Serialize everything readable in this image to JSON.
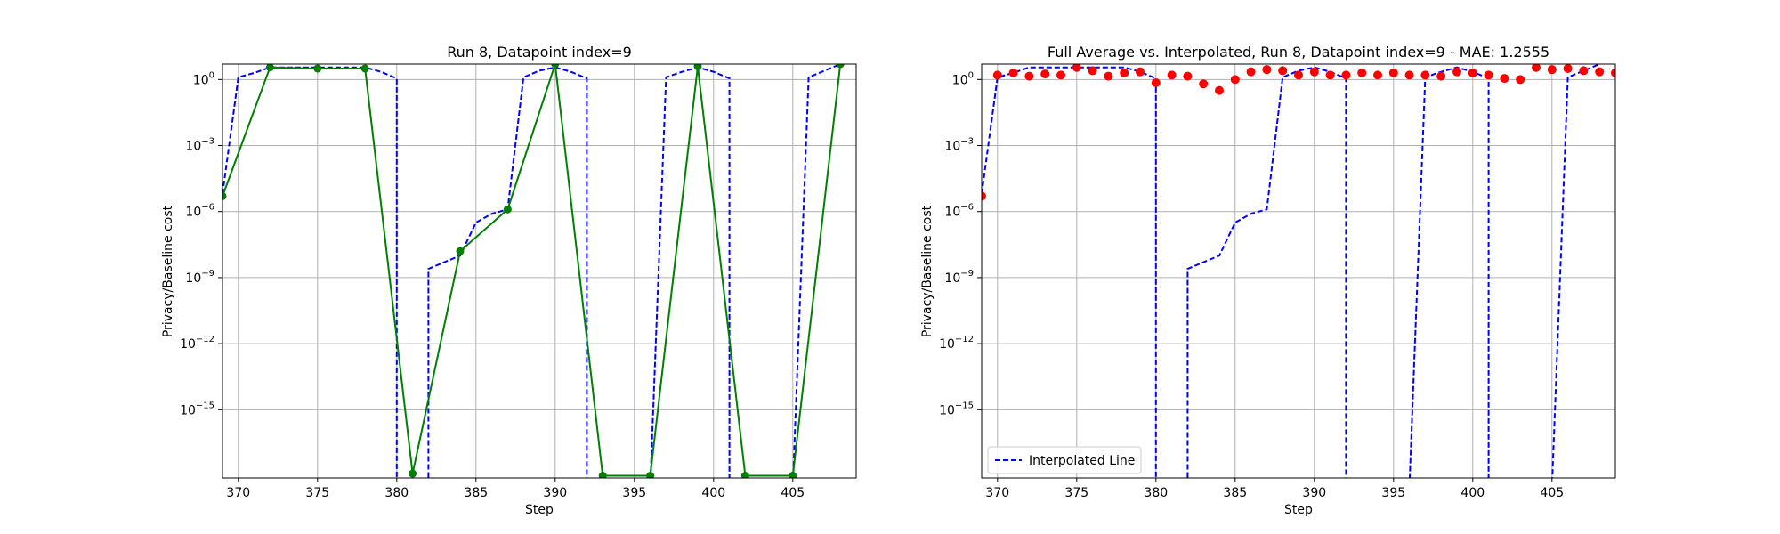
{
  "chart_data": [
    {
      "type": "line",
      "title": "Run 8, Datapoint index=9",
      "xlabel": "Step",
      "ylabel": "Privacy/Baseline cost",
      "xlim": [
        369,
        409
      ],
      "ylim_exponent": [
        -18.1,
        0.7
      ],
      "y_scale": "log",
      "grid": true,
      "x_ticks": [
        {
          "value": 370,
          "label": "370"
        },
        {
          "value": 375,
          "label": "375"
        },
        {
          "value": 380,
          "label": "380"
        },
        {
          "value": 385,
          "label": "385"
        },
        {
          "value": 390,
          "label": "390"
        },
        {
          "value": 395,
          "label": "395"
        },
        {
          "value": 400,
          "label": "400"
        },
        {
          "value": 405,
          "label": "405"
        }
      ],
      "y_ticks": [
        {
          "exp": 0,
          "base": "10",
          "power": "0"
        },
        {
          "exp": -3,
          "base": "10",
          "power": "−3"
        },
        {
          "exp": -6,
          "base": "10",
          "power": "−6"
        },
        {
          "exp": -9,
          "base": "10",
          "power": "−9"
        },
        {
          "exp": -12,
          "base": "10",
          "power": "−12"
        },
        {
          "exp": -15,
          "base": "10",
          "power": "−15"
        }
      ],
      "series": [
        {
          "style": "dashed",
          "color": "#0000ff",
          "points": [
            [
              369,
              -5.2
            ],
            [
              370,
              0.1
            ],
            [
              371,
              0.3
            ],
            [
              372,
              0.55
            ],
            [
              373,
              0.55
            ],
            [
              374,
              0.55
            ],
            [
              375,
              0.55
            ],
            [
              376,
              0.55
            ],
            [
              377,
              0.55
            ],
            [
              378,
              0.55
            ],
            [
              379,
              0.35
            ],
            [
              380,
              0.05
            ],
            [
              380,
              -18.5
            ],
            [
              382,
              -18.5
            ],
            [
              382,
              -8.6
            ],
            [
              383,
              -8.3
            ],
            [
              384,
              -8.0
            ],
            [
              385,
              -6.5
            ],
            [
              386,
              -6.1
            ],
            [
              387,
              -5.9
            ],
            [
              388,
              0.1
            ],
            [
              389,
              0.4
            ],
            [
              390,
              0.55
            ],
            [
              391,
              0.35
            ],
            [
              392,
              0.05
            ],
            [
              392,
              -18.5
            ],
            [
              396,
              -18.5
            ],
            [
              397,
              0.1
            ],
            [
              398,
              0.35
            ],
            [
              399,
              0.55
            ],
            [
              400,
              0.35
            ],
            [
              401,
              0.05
            ],
            [
              401,
              -18.5
            ],
            [
              405,
              -18.5
            ],
            [
              406,
              0.1
            ],
            [
              407,
              0.4
            ],
            [
              408,
              0.7
            ]
          ]
        },
        {
          "style": "solid-markers",
          "color": "#008000",
          "points": [
            [
              369,
              -5.3
            ],
            [
              372,
              0.55
            ],
            [
              375,
              0.5
            ],
            [
              378,
              0.5
            ],
            [
              381,
              -17.9
            ],
            [
              384,
              -7.8
            ],
            [
              387,
              -5.9
            ],
            [
              390,
              0.7
            ],
            [
              393,
              -18.0
            ],
            [
              396,
              -18.0
            ],
            [
              399,
              0.6
            ],
            [
              402,
              -18.0
            ],
            [
              405,
              -18.0
            ],
            [
              408,
              0.7
            ]
          ]
        }
      ]
    },
    {
      "type": "scatter",
      "title": "Full Average vs. Interpolated, Run 8, Datapoint index=9 - MAE: 1.2555",
      "xlabel": "Step",
      "ylabel": "Privacy/Baseline cost",
      "xlim": [
        369,
        409
      ],
      "ylim_exponent": [
        -18.1,
        0.7
      ],
      "y_scale": "log",
      "grid": true,
      "legend": {
        "position": "lower-left",
        "entries": [
          "Interpolated Line"
        ]
      },
      "x_ticks": [
        {
          "value": 370,
          "label": "370"
        },
        {
          "value": 375,
          "label": "375"
        },
        {
          "value": 380,
          "label": "380"
        },
        {
          "value": 385,
          "label": "385"
        },
        {
          "value": 390,
          "label": "390"
        },
        {
          "value": 395,
          "label": "395"
        },
        {
          "value": 400,
          "label": "400"
        },
        {
          "value": 405,
          "label": "405"
        }
      ],
      "y_ticks": [
        {
          "exp": 0,
          "base": "10",
          "power": "0"
        },
        {
          "exp": -3,
          "base": "10",
          "power": "−3"
        },
        {
          "exp": -6,
          "base": "10",
          "power": "−6"
        },
        {
          "exp": -9,
          "base": "10",
          "power": "−9"
        },
        {
          "exp": -12,
          "base": "10",
          "power": "−12"
        },
        {
          "exp": -15,
          "base": "10",
          "power": "−15"
        }
      ],
      "series": [
        {
          "name": "Interpolated Line",
          "style": "dashed",
          "color": "#0000ff",
          "points": [
            [
              369,
              -5.2
            ],
            [
              370,
              0.1
            ],
            [
              371,
              0.3
            ],
            [
              372,
              0.55
            ],
            [
              373,
              0.55
            ],
            [
              374,
              0.55
            ],
            [
              375,
              0.55
            ],
            [
              376,
              0.55
            ],
            [
              377,
              0.55
            ],
            [
              378,
              0.55
            ],
            [
              379,
              0.35
            ],
            [
              380,
              0.05
            ],
            [
              380,
              -18.5
            ],
            [
              382,
              -18.5
            ],
            [
              382,
              -8.6
            ],
            [
              383,
              -8.3
            ],
            [
              384,
              -8.0
            ],
            [
              385,
              -6.5
            ],
            [
              386,
              -6.1
            ],
            [
              387,
              -5.9
            ],
            [
              388,
              0.1
            ],
            [
              389,
              0.4
            ],
            [
              390,
              0.55
            ],
            [
              391,
              0.35
            ],
            [
              392,
              0.05
            ],
            [
              392,
              -18.5
            ],
            [
              396,
              -18.5
            ],
            [
              397,
              0.1
            ],
            [
              398,
              0.35
            ],
            [
              399,
              0.55
            ],
            [
              400,
              0.35
            ],
            [
              401,
              0.05
            ],
            [
              401,
              -18.5
            ],
            [
              405,
              -18.5
            ],
            [
              406,
              0.1
            ],
            [
              407,
              0.4
            ],
            [
              408,
              0.7
            ]
          ]
        },
        {
          "style": "markers",
          "color": "#ff0000",
          "points": [
            [
              369,
              -5.3
            ],
            [
              370,
              0.2
            ],
            [
              371,
              0.3
            ],
            [
              372,
              0.15
            ],
            [
              373,
              0.25
            ],
            [
              374,
              0.2
            ],
            [
              375,
              0.55
            ],
            [
              376,
              0.4
            ],
            [
              377,
              0.15
            ],
            [
              378,
              0.3
            ],
            [
              379,
              0.35
            ],
            [
              380,
              -0.15
            ],
            [
              381,
              0.2
            ],
            [
              382,
              0.15
            ],
            [
              383,
              -0.2
            ],
            [
              384,
              -0.5
            ],
            [
              385,
              0.0
            ],
            [
              386,
              0.35
            ],
            [
              387,
              0.45
            ],
            [
              388,
              0.4
            ],
            [
              389,
              0.2
            ],
            [
              390,
              0.35
            ],
            [
              391,
              0.2
            ],
            [
              392,
              0.2
            ],
            [
              393,
              0.3
            ],
            [
              394,
              0.2
            ],
            [
              395,
              0.3
            ],
            [
              396,
              0.2
            ],
            [
              397,
              0.2
            ],
            [
              398,
              0.15
            ],
            [
              399,
              0.35
            ],
            [
              400,
              0.3
            ],
            [
              401,
              0.2
            ],
            [
              402,
              0.05
            ],
            [
              403,
              0.0
            ],
            [
              404,
              0.55
            ],
            [
              405,
              0.45
            ],
            [
              406,
              0.5
            ],
            [
              407,
              0.4
            ],
            [
              408,
              0.35
            ],
            [
              409,
              0.3
            ]
          ]
        }
      ]
    }
  ]
}
